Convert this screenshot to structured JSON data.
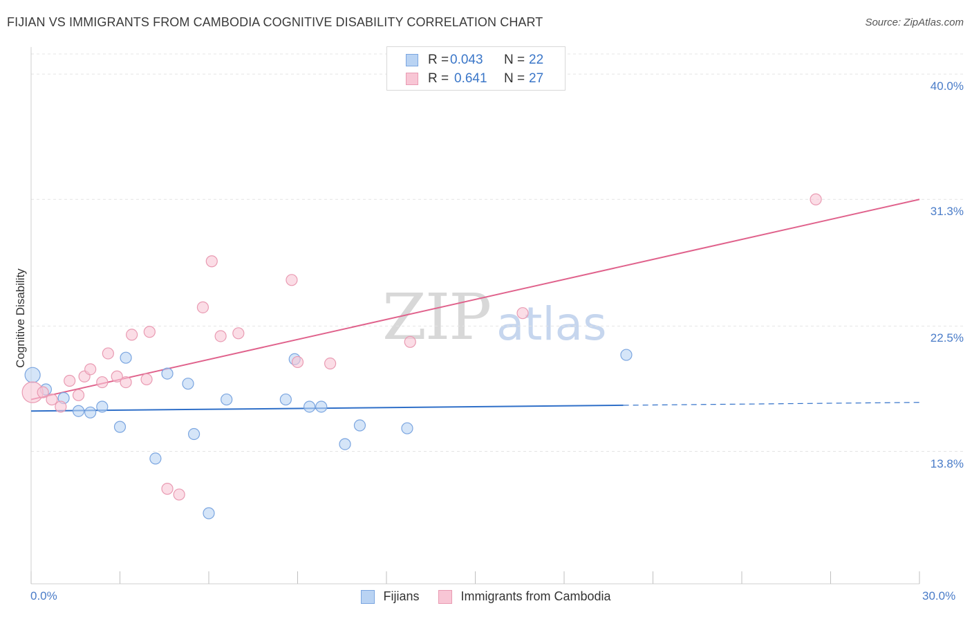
{
  "header": {
    "title": "FIJIAN VS IMMIGRANTS FROM CAMBODIA COGNITIVE DISABILITY CORRELATION CHART",
    "source": "Source: ZipAtlas.com"
  },
  "watermark": {
    "zip": "ZIP",
    "atlas": "atlas"
  },
  "legend_top": {
    "fijians": {
      "r_label": "R =",
      "r_value": "0.043",
      "n_label": "N =",
      "n_value": "22"
    },
    "cambodia": {
      "r_label": "R =",
      "r_value": "0.641",
      "n_label": "N =",
      "n_value": "27"
    }
  },
  "legend_bottom": {
    "fijians": "Fijians",
    "cambodia": "Immigrants from Cambodia"
  },
  "colors": {
    "fijians_fill": "#b9d3f3",
    "fijians_stroke": "#7aa5e0",
    "fijians_line": "#2f6fc8",
    "cambodia_fill": "#f8c6d5",
    "cambodia_stroke": "#e99ab2",
    "cambodia_line": "#e0628c",
    "grid": "#e4e4e4",
    "tick_label": "#4a7cc8"
  },
  "chart_data": {
    "type": "scatter",
    "title": "FIJIAN VS IMMIGRANTS FROM CAMBODIA COGNITIVE DISABILITY CORRELATION CHART",
    "xlabel": "",
    "ylabel": "Cognitive Disability",
    "xlim": [
      0,
      30
    ],
    "ylim": [
      4.6,
      41.4
    ],
    "x_tick_labels": [
      "0.0%",
      "30.0%"
    ],
    "y_ticks": [
      13.8,
      22.5,
      31.3,
      40.0
    ],
    "y_tick_labels": [
      "13.8%",
      "22.5%",
      "31.3%",
      "40.0%"
    ],
    "grid": true,
    "series": [
      {
        "name": "Fijians",
        "R": 0.043,
        "N": 22,
        "points": [
          [
            0.05,
            19.1
          ],
          [
            0.5,
            18.1
          ],
          [
            1.1,
            17.5
          ],
          [
            1.6,
            16.6
          ],
          [
            2.0,
            16.5
          ],
          [
            2.4,
            16.9
          ],
          [
            3.0,
            15.5
          ],
          [
            3.2,
            20.3
          ],
          [
            4.2,
            13.3
          ],
          [
            4.6,
            19.2
          ],
          [
            5.3,
            18.5
          ],
          [
            5.5,
            15.0
          ],
          [
            6.0,
            9.5
          ],
          [
            6.6,
            17.4
          ],
          [
            8.6,
            17.4
          ],
          [
            8.9,
            20.2
          ],
          [
            9.4,
            16.9
          ],
          [
            9.8,
            16.9
          ],
          [
            10.6,
            14.3
          ],
          [
            11.1,
            15.6
          ],
          [
            12.7,
            15.4
          ],
          [
            20.1,
            20.5
          ]
        ],
        "trend": {
          "x0": 0,
          "y0": 16.6,
          "x1": 20.0,
          "y1": 17.0,
          "dash_to_x": 30,
          "dash_to_y": 17.2
        }
      },
      {
        "name": "Immigrants from Cambodia",
        "R": 0.641,
        "N": 27,
        "points": [
          [
            0.05,
            17.9
          ],
          [
            0.4,
            17.9
          ],
          [
            0.7,
            17.4
          ],
          [
            1.0,
            16.9
          ],
          [
            1.3,
            18.7
          ],
          [
            1.6,
            17.7
          ],
          [
            1.8,
            19.0
          ],
          [
            2.0,
            19.5
          ],
          [
            2.4,
            18.6
          ],
          [
            2.6,
            20.6
          ],
          [
            2.9,
            19.0
          ],
          [
            3.2,
            18.6
          ],
          [
            3.4,
            21.9
          ],
          [
            3.9,
            18.8
          ],
          [
            4.0,
            22.1
          ],
          [
            4.6,
            11.2
          ],
          [
            5.0,
            10.8
          ],
          [
            5.8,
            23.8
          ],
          [
            6.1,
            27.0
          ],
          [
            6.4,
            21.8
          ],
          [
            7.0,
            22.0
          ],
          [
            8.8,
            25.7
          ],
          [
            9.0,
            20.0
          ],
          [
            10.1,
            19.9
          ],
          [
            12.8,
            21.4
          ],
          [
            16.6,
            23.4
          ],
          [
            26.5,
            31.3
          ]
        ],
        "trend": {
          "x0": 0,
          "y0": 17.4,
          "x1": 30,
          "y1": 31.3
        }
      }
    ]
  }
}
